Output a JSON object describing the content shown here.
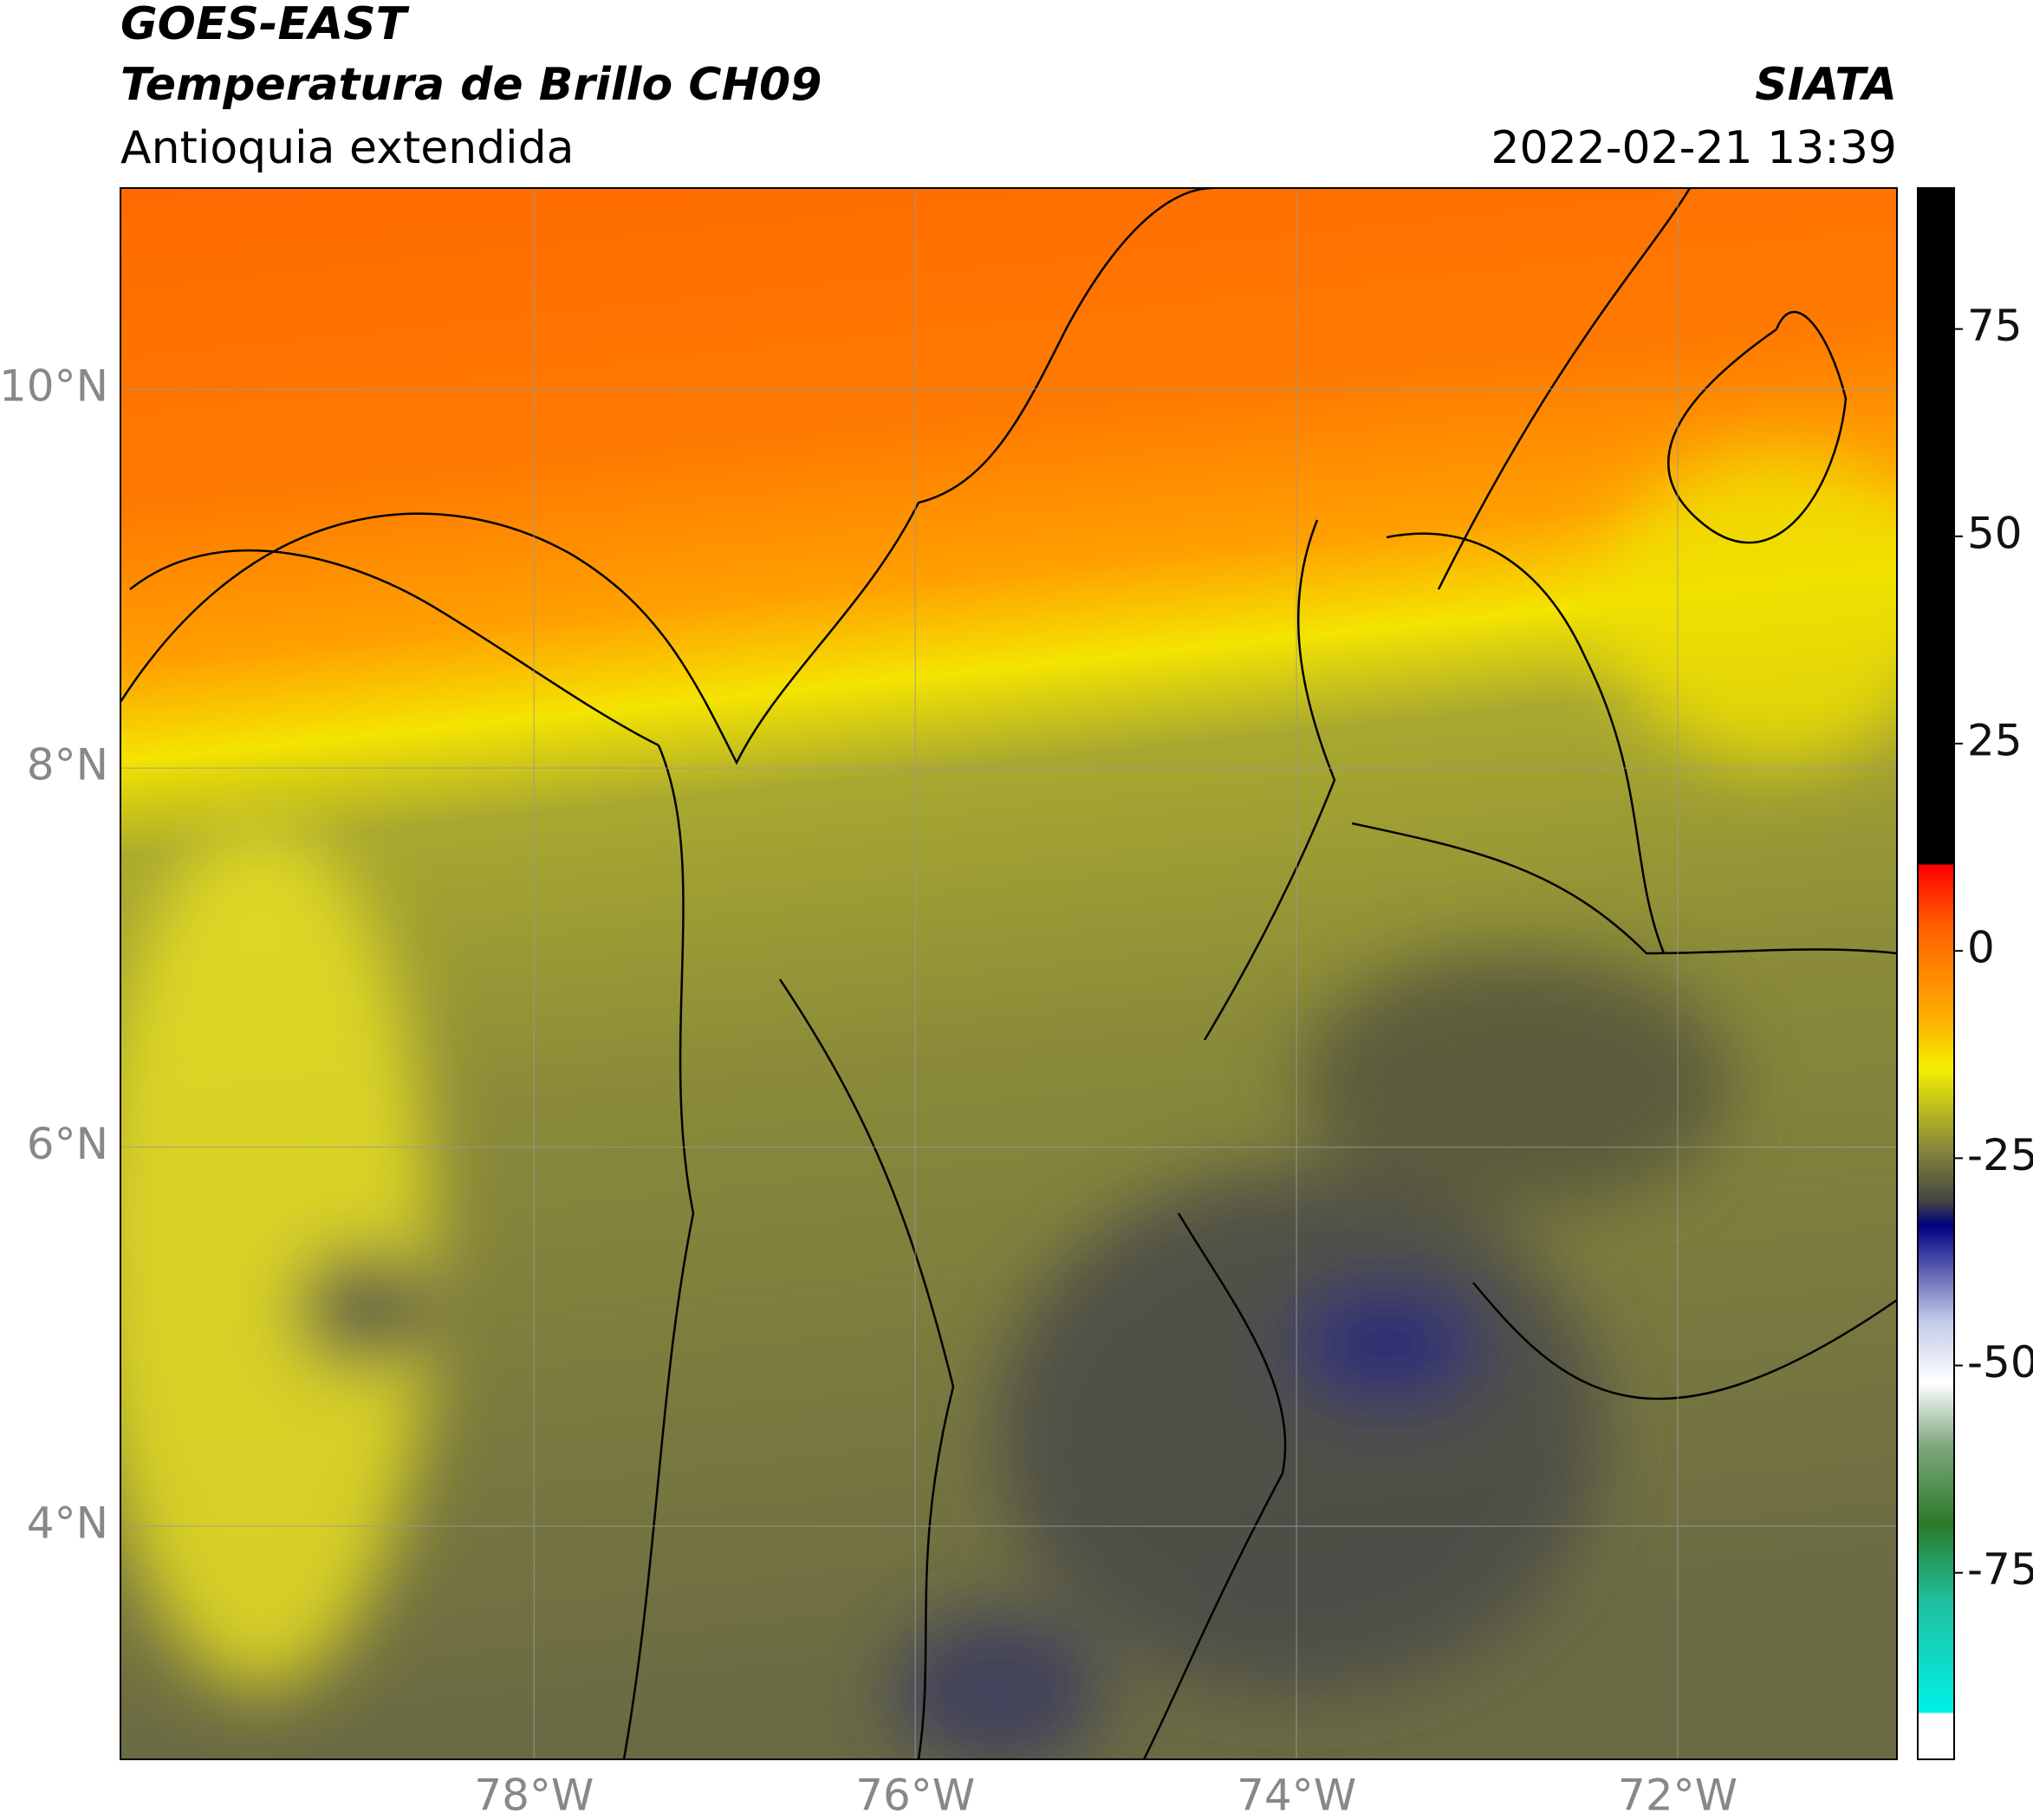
{
  "header": {
    "title": "GOES-EAST",
    "subtitle": "Temperatura de Brillo CH09",
    "region": "Antioquia extendida",
    "source": "SIATA",
    "datetime": "2022-02-21 13:39"
  },
  "map": {
    "xlim": [
      -80.17,
      -70.85
    ],
    "ylim": [
      2.77,
      11.06
    ],
    "xticks": [
      {
        "value": -78,
        "label": "78°W"
      },
      {
        "value": -76,
        "label": "76°W"
      },
      {
        "value": -74,
        "label": "74°W"
      },
      {
        "value": -72,
        "label": "72°W"
      }
    ],
    "yticks": [
      {
        "value": 4,
        "label": "4°N"
      },
      {
        "value": 6,
        "label": "6°N"
      },
      {
        "value": 8,
        "label": "8°N"
      },
      {
        "value": 10,
        "label": "10°N"
      }
    ],
    "grid": true
  },
  "colorbar": {
    "ylim": [
      -97.5,
      92
    ],
    "yticks": [
      -75,
      -50,
      -25,
      0,
      25,
      50,
      75
    ]
  }
}
